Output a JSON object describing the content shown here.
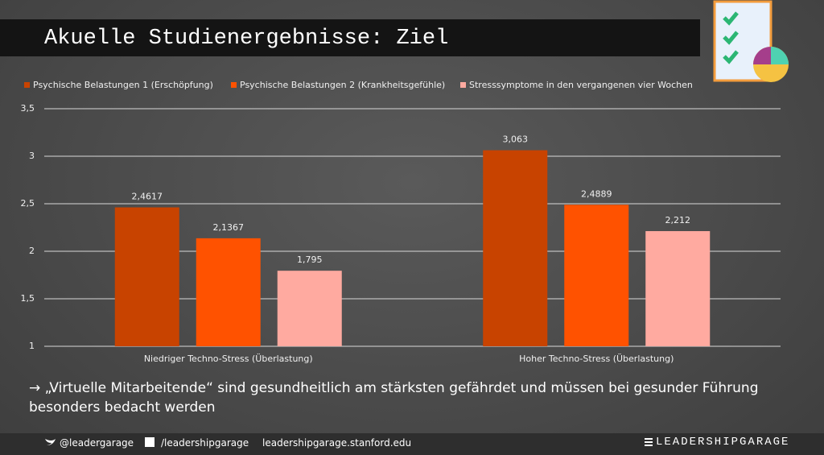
{
  "header": {
    "title": "Akuelle Studienergebnisse: Ziel"
  },
  "chart_data": {
    "type": "bar",
    "legend": "top",
    "categories": [
      "Niedriger Techno-Stress (Überlastung)",
      "Hoher Techno-Stress (Überlastung)"
    ],
    "series": [
      {
        "name": "Psychische Belastungen 1 (Erschöpfung)",
        "color": "#c84300",
        "values": [
          2.4617,
          3.063
        ],
        "value_labels": [
          "2,4617",
          "3,063"
        ]
      },
      {
        "name": "Psychische Belastungen 2 (Krankheitsgefühle)",
        "color": "#ff5200",
        "values": [
          2.1367,
          2.4889
        ],
        "value_labels": [
          "2,1367",
          "2,4889"
        ]
      },
      {
        "name": "Stresssymptome in den vergangenen vier Wochen",
        "color": "#ffaaa0",
        "values": [
          1.795,
          2.212
        ],
        "value_labels": [
          "1,795",
          "2,212"
        ]
      }
    ],
    "ylim": [
      1,
      3.5
    ],
    "yticks": [
      1,
      {
        "value": 1.5,
        "label": "1,5"
      },
      2,
      {
        "value": 2.5,
        "label": "2,5"
      },
      3,
      {
        "value": 3.5,
        "label": "3,5"
      }
    ],
    "grid": true
  },
  "footnote": "→ „Virtuelle Mitarbeitende“ sind gesundheitlich am stärksten gefährdet und müssen bei gesunder Führung besonders bedacht werden",
  "footer": {
    "twitter": "@leadergarage",
    "facebook": "/leadershipgarage",
    "website": "leadershipgarage.stanford.edu",
    "brand": "LEADERSHIPGARAGE"
  }
}
